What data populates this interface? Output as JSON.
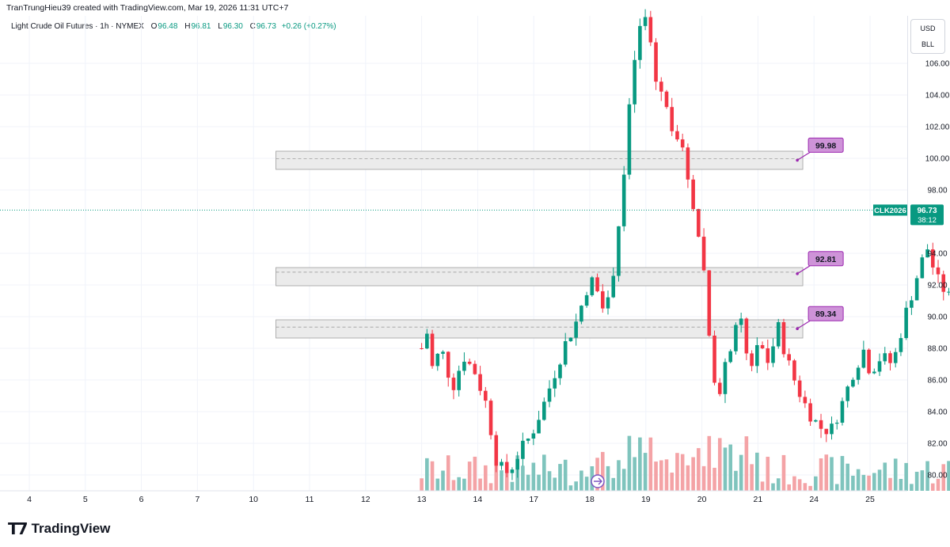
{
  "header": {
    "credit": "TranTrungHieu39 created with TradingView.com, Mar 19, 2026 11:31 UTC+7"
  },
  "legend": {
    "symbol_line": "Light Crude Oil Futures · 1h · NYMEX",
    "o_label": "O",
    "o_value": "96.48",
    "h_label": "H",
    "h_value": "96.81",
    "l_label": "L",
    "l_value": "96.30",
    "c_label": "C",
    "c_value": "96.73",
    "change": "+0.26 (+0.27%)"
  },
  "price_axis": {
    "unit_top": "USD",
    "unit_bottom": "BLL",
    "tick_labels": [
      "106.00",
      "104.00",
      "102.00",
      "100.00",
      "98.00",
      "94.00",
      "92.00",
      "90.00",
      "88.00",
      "86.00",
      "84.00",
      "82.00",
      "80.00"
    ]
  },
  "last_price_tag": {
    "symbol": "CLK2026",
    "price": "96.73",
    "countdown": "38:12",
    "color": "#089981"
  },
  "footer": {
    "brand": "TradingView"
  },
  "colors": {
    "up": "#089981",
    "down": "#f23645",
    "vol_up": "#7fc4bd",
    "vol_down": "#f4a3a6",
    "zone_fill": "#ebebeb",
    "zone_border": "#9e9e9e",
    "label_fill": "#ce93d8",
    "label_border": "#9c27b0"
  },
  "chart_data": {
    "type": "candlestick",
    "symbol": "CLK2026",
    "interval": "1h",
    "y_range": [
      79,
      109
    ],
    "x_tick_labels": [
      "4",
      "5",
      "6",
      "7",
      "10",
      "11",
      "12",
      "13",
      "14",
      "17",
      "18",
      "19",
      "20",
      "21",
      "24",
      "25"
    ],
    "zones": [
      {
        "low": 99.3,
        "high": 100.45,
        "mid": 99.98,
        "label": "99.98"
      },
      {
        "low": 91.95,
        "high": 93.1,
        "mid": 92.81,
        "label": "92.81"
      },
      {
        "low": 88.65,
        "high": 89.8,
        "mid": 89.34,
        "label": "89.34"
      }
    ],
    "last_price": 96.73,
    "price_path": [
      [
        7.0,
        88.0
      ],
      [
        7.05,
        91.0
      ],
      [
        7.15,
        86.5
      ],
      [
        7.35,
        88.0
      ],
      [
        7.55,
        85.5
      ],
      [
        7.75,
        87.5
      ],
      [
        7.95,
        86.5
      ],
      [
        8.15,
        84.5
      ],
      [
        8.35,
        80.6
      ],
      [
        8.55,
        80.1
      ],
      [
        8.75,
        81.5
      ],
      [
        8.95,
        82.5
      ],
      [
        9.15,
        84.2
      ],
      [
        9.35,
        86.2
      ],
      [
        9.55,
        88.2
      ],
      [
        9.75,
        89.6
      ],
      [
        9.95,
        91.8
      ],
      [
        10.1,
        92.5
      ],
      [
        10.2,
        91.0
      ],
      [
        10.35,
        90.8
      ],
      [
        10.6,
        98.5
      ],
      [
        10.75,
        105.0
      ],
      [
        10.85,
        107.5
      ],
      [
        10.95,
        109.0
      ],
      [
        11.05,
        108.5
      ],
      [
        11.15,
        105.0
      ],
      [
        11.3,
        104.2
      ],
      [
        11.4,
        102.6
      ],
      [
        11.6,
        101.2
      ],
      [
        11.8,
        98.0
      ],
      [
        11.95,
        95.0
      ],
      [
        12.05,
        92.5
      ],
      [
        12.15,
        88.0
      ],
      [
        12.3,
        84.5
      ],
      [
        12.4,
        86.5
      ],
      [
        12.55,
        88.8
      ],
      [
        12.7,
        89.5
      ],
      [
        12.85,
        86.5
      ],
      [
        13.0,
        88.5
      ],
      [
        13.2,
        87.0
      ],
      [
        13.35,
        89.5
      ],
      [
        13.5,
        87.5
      ],
      [
        13.7,
        85.5
      ],
      [
        13.9,
        84.0
      ],
      [
        14.1,
        83.0
      ],
      [
        14.3,
        82.8
      ],
      [
        14.5,
        84.5
      ],
      [
        14.7,
        86.5
      ],
      [
        14.9,
        88.0
      ],
      [
        15.0,
        86.5
      ],
      [
        15.2,
        87.5
      ],
      [
        15.4,
        87.0
      ],
      [
        15.5,
        88.2
      ],
      [
        15.6,
        89.8
      ],
      [
        15.75,
        91.5
      ],
      [
        15.9,
        93.3
      ],
      [
        16.05,
        94.5
      ],
      [
        16.15,
        92.6
      ],
      [
        16.3,
        91.8
      ],
      [
        16.45,
        91.0
      ],
      [
        16.55,
        90.5
      ],
      [
        16.7,
        91.5
      ],
      [
        16.85,
        93.5
      ],
      [
        16.95,
        95.5
      ],
      [
        17.1,
        96.5
      ],
      [
        17.25,
        96.0
      ],
      [
        17.45,
        96.6
      ],
      [
        17.6,
        95.5
      ],
      [
        17.75,
        95.2
      ],
      [
        17.85,
        96.2
      ],
      [
        17.95,
        93.5
      ],
      [
        18.05,
        92.8
      ],
      [
        18.25,
        94.5
      ],
      [
        18.4,
        95.6
      ],
      [
        18.55,
        96.6
      ],
      [
        18.7,
        97.6
      ],
      [
        18.85,
        98.3
      ],
      [
        19.0,
        98.6
      ],
      [
        19.15,
        100.5
      ],
      [
        19.25,
        99.4
      ],
      [
        19.4,
        98.6
      ],
      [
        19.55,
        99.0
      ],
      [
        19.7,
        100.1
      ],
      [
        19.8,
        99.3
      ],
      [
        19.9,
        100.6
      ],
      [
        20.05,
        97.8
      ],
      [
        20.15,
        96.6
      ],
      [
        20.3,
        93.6
      ],
      [
        20.45,
        94.3
      ],
      [
        20.6,
        93.3
      ],
      [
        20.75,
        94.8
      ],
      [
        20.9,
        95.8
      ],
      [
        21.05,
        95.9
      ],
      [
        21.2,
        96.3
      ],
      [
        21.3,
        97.9
      ],
      [
        21.4,
        97.0
      ],
      [
        21.55,
        96.5
      ],
      [
        21.7,
        95.0
      ],
      [
        21.85,
        94.0
      ],
      [
        22.0,
        95.0
      ],
      [
        22.15,
        95.9
      ],
      [
        22.3,
        96.0
      ],
      [
        22.4,
        95.0
      ],
      [
        22.55,
        94.0
      ],
      [
        22.75,
        93.0
      ],
      [
        22.85,
        92.3
      ],
      [
        22.95,
        92.7
      ],
      [
        23.05,
        93.4
      ],
      [
        23.2,
        94.3
      ],
      [
        23.35,
        95.2
      ],
      [
        23.5,
        96.8
      ],
      [
        23.65,
        98.2
      ],
      [
        23.8,
        97.5
      ],
      [
        23.95,
        95.8
      ],
      [
        24.05,
        98.6
      ],
      [
        24.15,
        99.2
      ],
      [
        24.3,
        98.4
      ],
      [
        24.45,
        96.5
      ],
      [
        24.55,
        96.9
      ],
      [
        24.65,
        96.73
      ]
    ]
  }
}
